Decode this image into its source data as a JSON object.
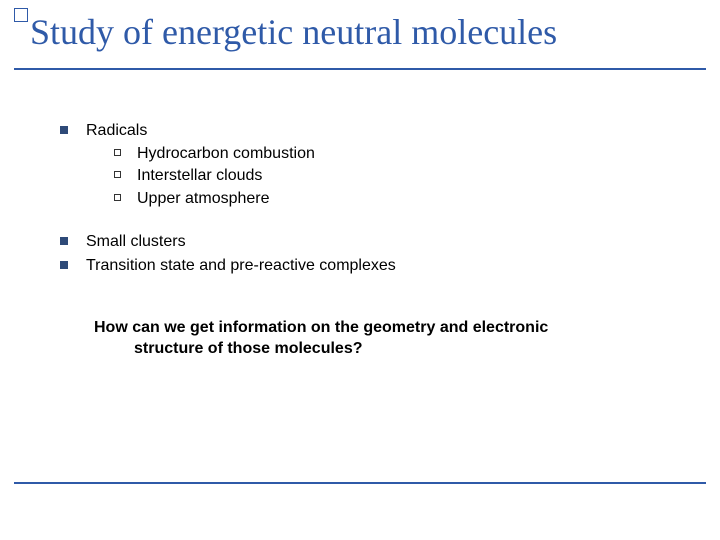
{
  "colors": {
    "accent": "#2f5aa8",
    "text": "#000000",
    "bullet": "#2e4a78",
    "subBullet": "#333333"
  },
  "title": "Study of energetic neutral molecules",
  "items": [
    {
      "label": "Radicals",
      "sub": [
        "Hydrocarbon combustion",
        "Interstellar clouds",
        "Upper atmosphere"
      ]
    }
  ],
  "itemsAfter": [
    "Small clusters",
    "Transition state and pre-reactive complexes"
  ],
  "question": {
    "line1": "How can we get information on the geometry and electronic",
    "line2": "structure of those molecules?"
  }
}
